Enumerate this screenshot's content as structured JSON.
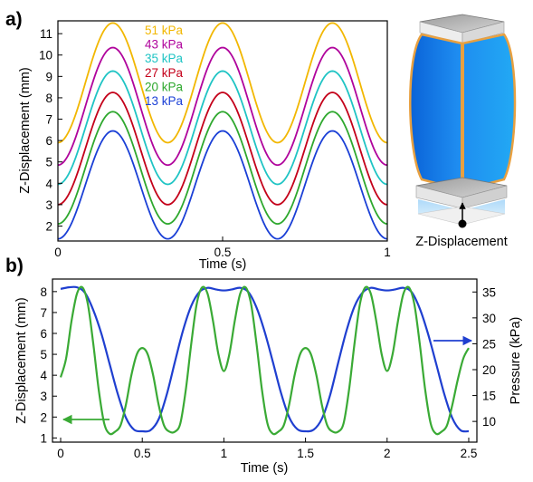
{
  "figure": {
    "panel_a_label": "a)",
    "panel_b_label": "b)",
    "actuator_caption": "Z-Displacement"
  },
  "chart_data": [
    {
      "type": "line",
      "panel": "a)",
      "xlabel": "Time (s)",
      "ylabel": "Z-Displacement (mm)",
      "xlim": [
        0,
        1
      ],
      "ylim": [
        1.3,
        11.6
      ],
      "xticks": [
        0,
        0.5,
        1
      ],
      "xtick_labels": [
        "0",
        "0.5",
        "1"
      ],
      "yticks": [
        2,
        3,
        4,
        5,
        6,
        7,
        8,
        9,
        10,
        11
      ],
      "yticks_labels": [
        "2",
        "3",
        "4",
        "5",
        "6",
        "7",
        "8",
        "9",
        "10",
        "11"
      ],
      "grid": false,
      "legend_position": "top-left (inside)",
      "waveform": "sinusoidal, period 1/3 s, peaks at t = 1/6, 1/2, 5/6 s",
      "series": [
        {
          "name": "51 kPa",
          "color": "#F2B700",
          "min": 5.9,
          "max": 11.5
        },
        {
          "name": "43 kPa",
          "color": "#B0049C",
          "min": 4.85,
          "max": 10.35
        },
        {
          "name": "35 kPa",
          "color": "#1FC4C4",
          "min": 3.95,
          "max": 9.25
        },
        {
          "name": "27 kPa",
          "color": "#C4001A",
          "min": 3.0,
          "max": 8.25
        },
        {
          "name": "20 kPa",
          "color": "#2EA82E",
          "min": 2.1,
          "max": 7.35
        },
        {
          "name": "13 kPa",
          "color": "#1A3FD6",
          "min": 1.4,
          "max": 6.45
        }
      ]
    },
    {
      "type": "line",
      "panel": "b)",
      "xlabel": "Time (s)",
      "ylabel": "Z-Displacement (mm)",
      "ylabel_right": "Pressure (kPa)",
      "xlim": [
        -0.05,
        2.55
      ],
      "ylim": [
        0.8,
        8.6
      ],
      "ylim_right": [
        6.0,
        37.5
      ],
      "xticks": [
        0,
        0.5,
        1,
        1.5,
        2,
        2.5
      ],
      "xtick_labels": [
        "0",
        "0.5",
        "1",
        "1.5",
        "2",
        "2.5"
      ],
      "yticks": [
        1,
        2,
        3,
        4,
        5,
        6,
        7,
        8
      ],
      "yticks_labels": [
        "1",
        "2",
        "3",
        "4",
        "5",
        "6",
        "7",
        "8"
      ],
      "yticks_right": [
        10,
        15,
        20,
        25,
        30,
        35
      ],
      "yticks_right_labels": [
        "10",
        "15",
        "20",
        "25",
        "30",
        "35"
      ],
      "grid": false,
      "series": [
        {
          "name": "Pressure",
          "axis": "right",
          "color": "#1F3FD0",
          "x": [
            0,
            0.05,
            0.1,
            0.15,
            0.2,
            0.25,
            0.3,
            0.35,
            0.4,
            0.45,
            0.5,
            0.55,
            0.6,
            0.65,
            0.7,
            0.75,
            0.8,
            0.85,
            0.9,
            0.95,
            1.0,
            1.05,
            1.1,
            1.15,
            1.2,
            1.25,
            1.3,
            1.35,
            1.4,
            1.45,
            1.5,
            1.55,
            1.6,
            1.65,
            1.7,
            1.75,
            1.8,
            1.85,
            1.9,
            1.95,
            2.0,
            2.05,
            2.1,
            2.15,
            2.2,
            2.25,
            2.3,
            2.35,
            2.4,
            2.45,
            2.5
          ],
          "y": [
            35.6,
            35.9,
            35.9,
            34.8,
            31.5,
            26.9,
            21.1,
            15.3,
            10.7,
            8.4,
            8.1,
            8.3,
            10.4,
            15.2,
            21.5,
            27.6,
            32.3,
            35.0,
            35.8,
            35.5,
            35.3,
            35.5,
            35.8,
            35.0,
            32.0,
            27.3,
            21.5,
            15.5,
            10.8,
            8.5,
            8.1,
            8.4,
            10.5,
            15.0,
            21.3,
            27.4,
            32.2,
            34.9,
            35.8,
            35.5,
            35.3,
            35.5,
            35.8,
            35.0,
            31.8,
            27.0,
            21.2,
            15.3,
            10.6,
            8.3,
            8.1
          ]
        },
        {
          "name": "Z-Displacement",
          "axis": "left",
          "color": "#3AAA35",
          "x": [
            0,
            0.0333,
            0.0667,
            0.1,
            0.1333,
            0.1667,
            0.2,
            0.2333,
            0.2667,
            0.3,
            0.3333,
            0.3667,
            0.4,
            0.4333,
            0.4667,
            0.5,
            0.5333,
            0.5667,
            0.6,
            0.6333,
            0.6667,
            0.7,
            0.7333,
            0.7667,
            0.8,
            0.8333,
            0.8667,
            0.9,
            0.9333,
            0.9667,
            1.0,
            1.0333,
            1.0667,
            1.1,
            1.1333,
            1.1667,
            1.2,
            1.2333,
            1.2667,
            1.3,
            1.3333,
            1.3667,
            1.4,
            1.4333,
            1.4667,
            1.5,
            1.5333,
            1.5667,
            1.6,
            1.6333,
            1.6667,
            1.7,
            1.7333,
            1.7667,
            1.8,
            1.8333,
            1.8667,
            1.9,
            1.9333,
            1.9667,
            2.0,
            2.0333,
            2.0667,
            2.1,
            2.1333,
            2.1667,
            2.2,
            2.2333,
            2.2667,
            2.3,
            2.3333,
            2.3667,
            2.4,
            2.4333,
            2.4667,
            2.5
          ],
          "y": [
            3.9,
            4.8,
            6.6,
            7.9,
            8.2,
            7.4,
            5.5,
            3.3,
            1.7,
            1.2,
            1.3,
            1.6,
            2.6,
            4.0,
            5.0,
            5.3,
            5.0,
            4.0,
            2.6,
            1.6,
            1.3,
            1.3,
            1.7,
            3.3,
            5.5,
            7.4,
            8.2,
            7.9,
            6.6,
            5.0,
            4.2,
            5.0,
            6.6,
            7.9,
            8.2,
            7.4,
            5.5,
            3.3,
            1.7,
            1.2,
            1.3,
            1.6,
            2.6,
            4.0,
            5.0,
            5.3,
            5.0,
            4.0,
            2.6,
            1.6,
            1.3,
            1.3,
            1.7,
            3.3,
            5.5,
            7.4,
            8.2,
            7.9,
            6.6,
            5.0,
            4.2,
            5.0,
            6.6,
            7.9,
            8.2,
            7.4,
            5.5,
            3.3,
            1.7,
            1.2,
            1.3,
            1.6,
            2.6,
            3.8,
            4.8,
            5.3
          ]
        }
      ]
    }
  ]
}
